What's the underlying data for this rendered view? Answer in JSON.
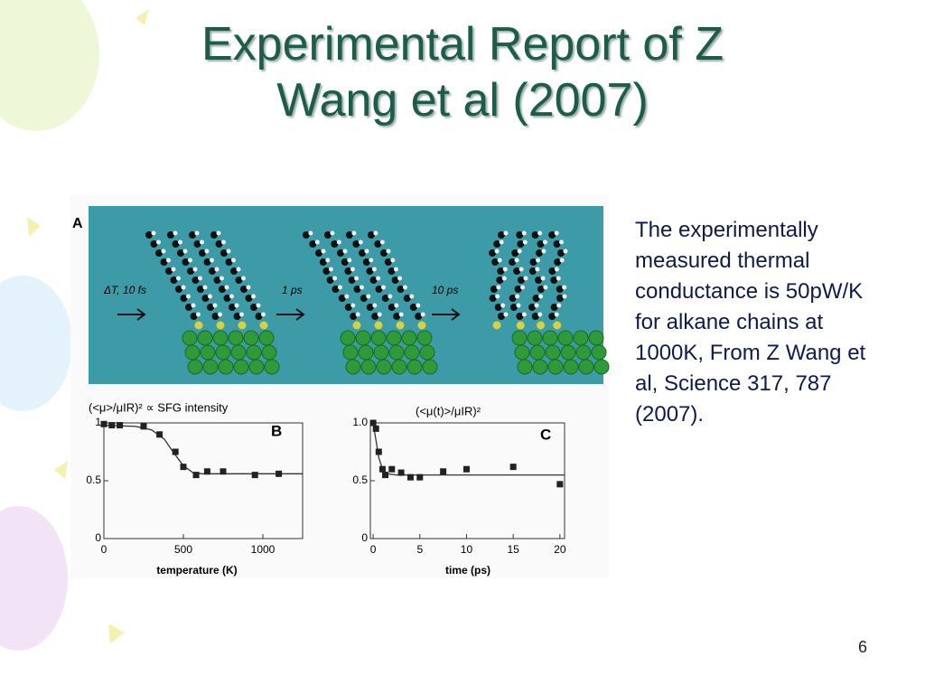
{
  "slide": {
    "title": "Experimental Report of Z Wang et al (2007)",
    "body": "The experimentally measured thermal conductance is 50pW/K for alkane chains at 1000K, From Z Wang et al, Science 317, 787 (2007).",
    "page_number": "6"
  },
  "figure": {
    "panel_label": "A",
    "step_labels": [
      "ΔT, 10 fs",
      "1 ps",
      "10 ps"
    ]
  },
  "chart_data": [
    {
      "type": "scatter",
      "panel_label": "B",
      "ylabel": "(<μ>/μIR)² ∝ SFG intensity",
      "xlabel": "temperature (K)",
      "xlim": [
        0,
        1250
      ],
      "xticks": [
        0,
        500,
        1000
      ],
      "ylim": [
        0,
        1
      ],
      "yticks": [
        0,
        0.5,
        1
      ],
      "color": "#222222",
      "x": [
        0,
        50,
        100,
        250,
        350,
        450,
        500,
        580,
        650,
        750,
        950,
        1100
      ],
      "values": [
        0.99,
        0.98,
        0.98,
        0.97,
        0.9,
        0.75,
        0.62,
        0.55,
        0.58,
        0.58,
        0.55,
        0.56
      ],
      "fit": {
        "x": [
          0,
          200,
          300,
          380,
          440,
          500,
          560,
          620,
          700,
          1250
        ],
        "values": [
          0.98,
          0.97,
          0.94,
          0.86,
          0.74,
          0.63,
          0.57,
          0.56,
          0.56,
          0.56
        ]
      }
    },
    {
      "type": "scatter",
      "panel_label": "C",
      "ylabel": "(<μ(t)>/μIR)²",
      "xlabel": "time (ps)",
      "xlim": [
        -0.3,
        20.5
      ],
      "xticks": [
        0,
        5,
        10,
        15,
        20
      ],
      "ylim": [
        0,
        1
      ],
      "yticks": [
        0,
        0.5,
        {
          "value": 1,
          "label": "1.0"
        }
      ],
      "color": "#222222",
      "x": [
        0,
        0.3,
        0.6,
        1,
        1.3,
        2,
        3,
        4,
        5,
        7.5,
        10,
        15,
        20
      ],
      "values": [
        1,
        0.95,
        0.75,
        0.6,
        0.55,
        0.6,
        0.57,
        0.53,
        0.53,
        0.58,
        0.6,
        0.62,
        0.47
      ],
      "fit": {
        "x": [
          0,
          0.3,
          0.6,
          1,
          1.5,
          2.5,
          20.5
        ],
        "values": [
          1,
          0.85,
          0.7,
          0.6,
          0.56,
          0.55,
          0.55
        ]
      }
    }
  ]
}
